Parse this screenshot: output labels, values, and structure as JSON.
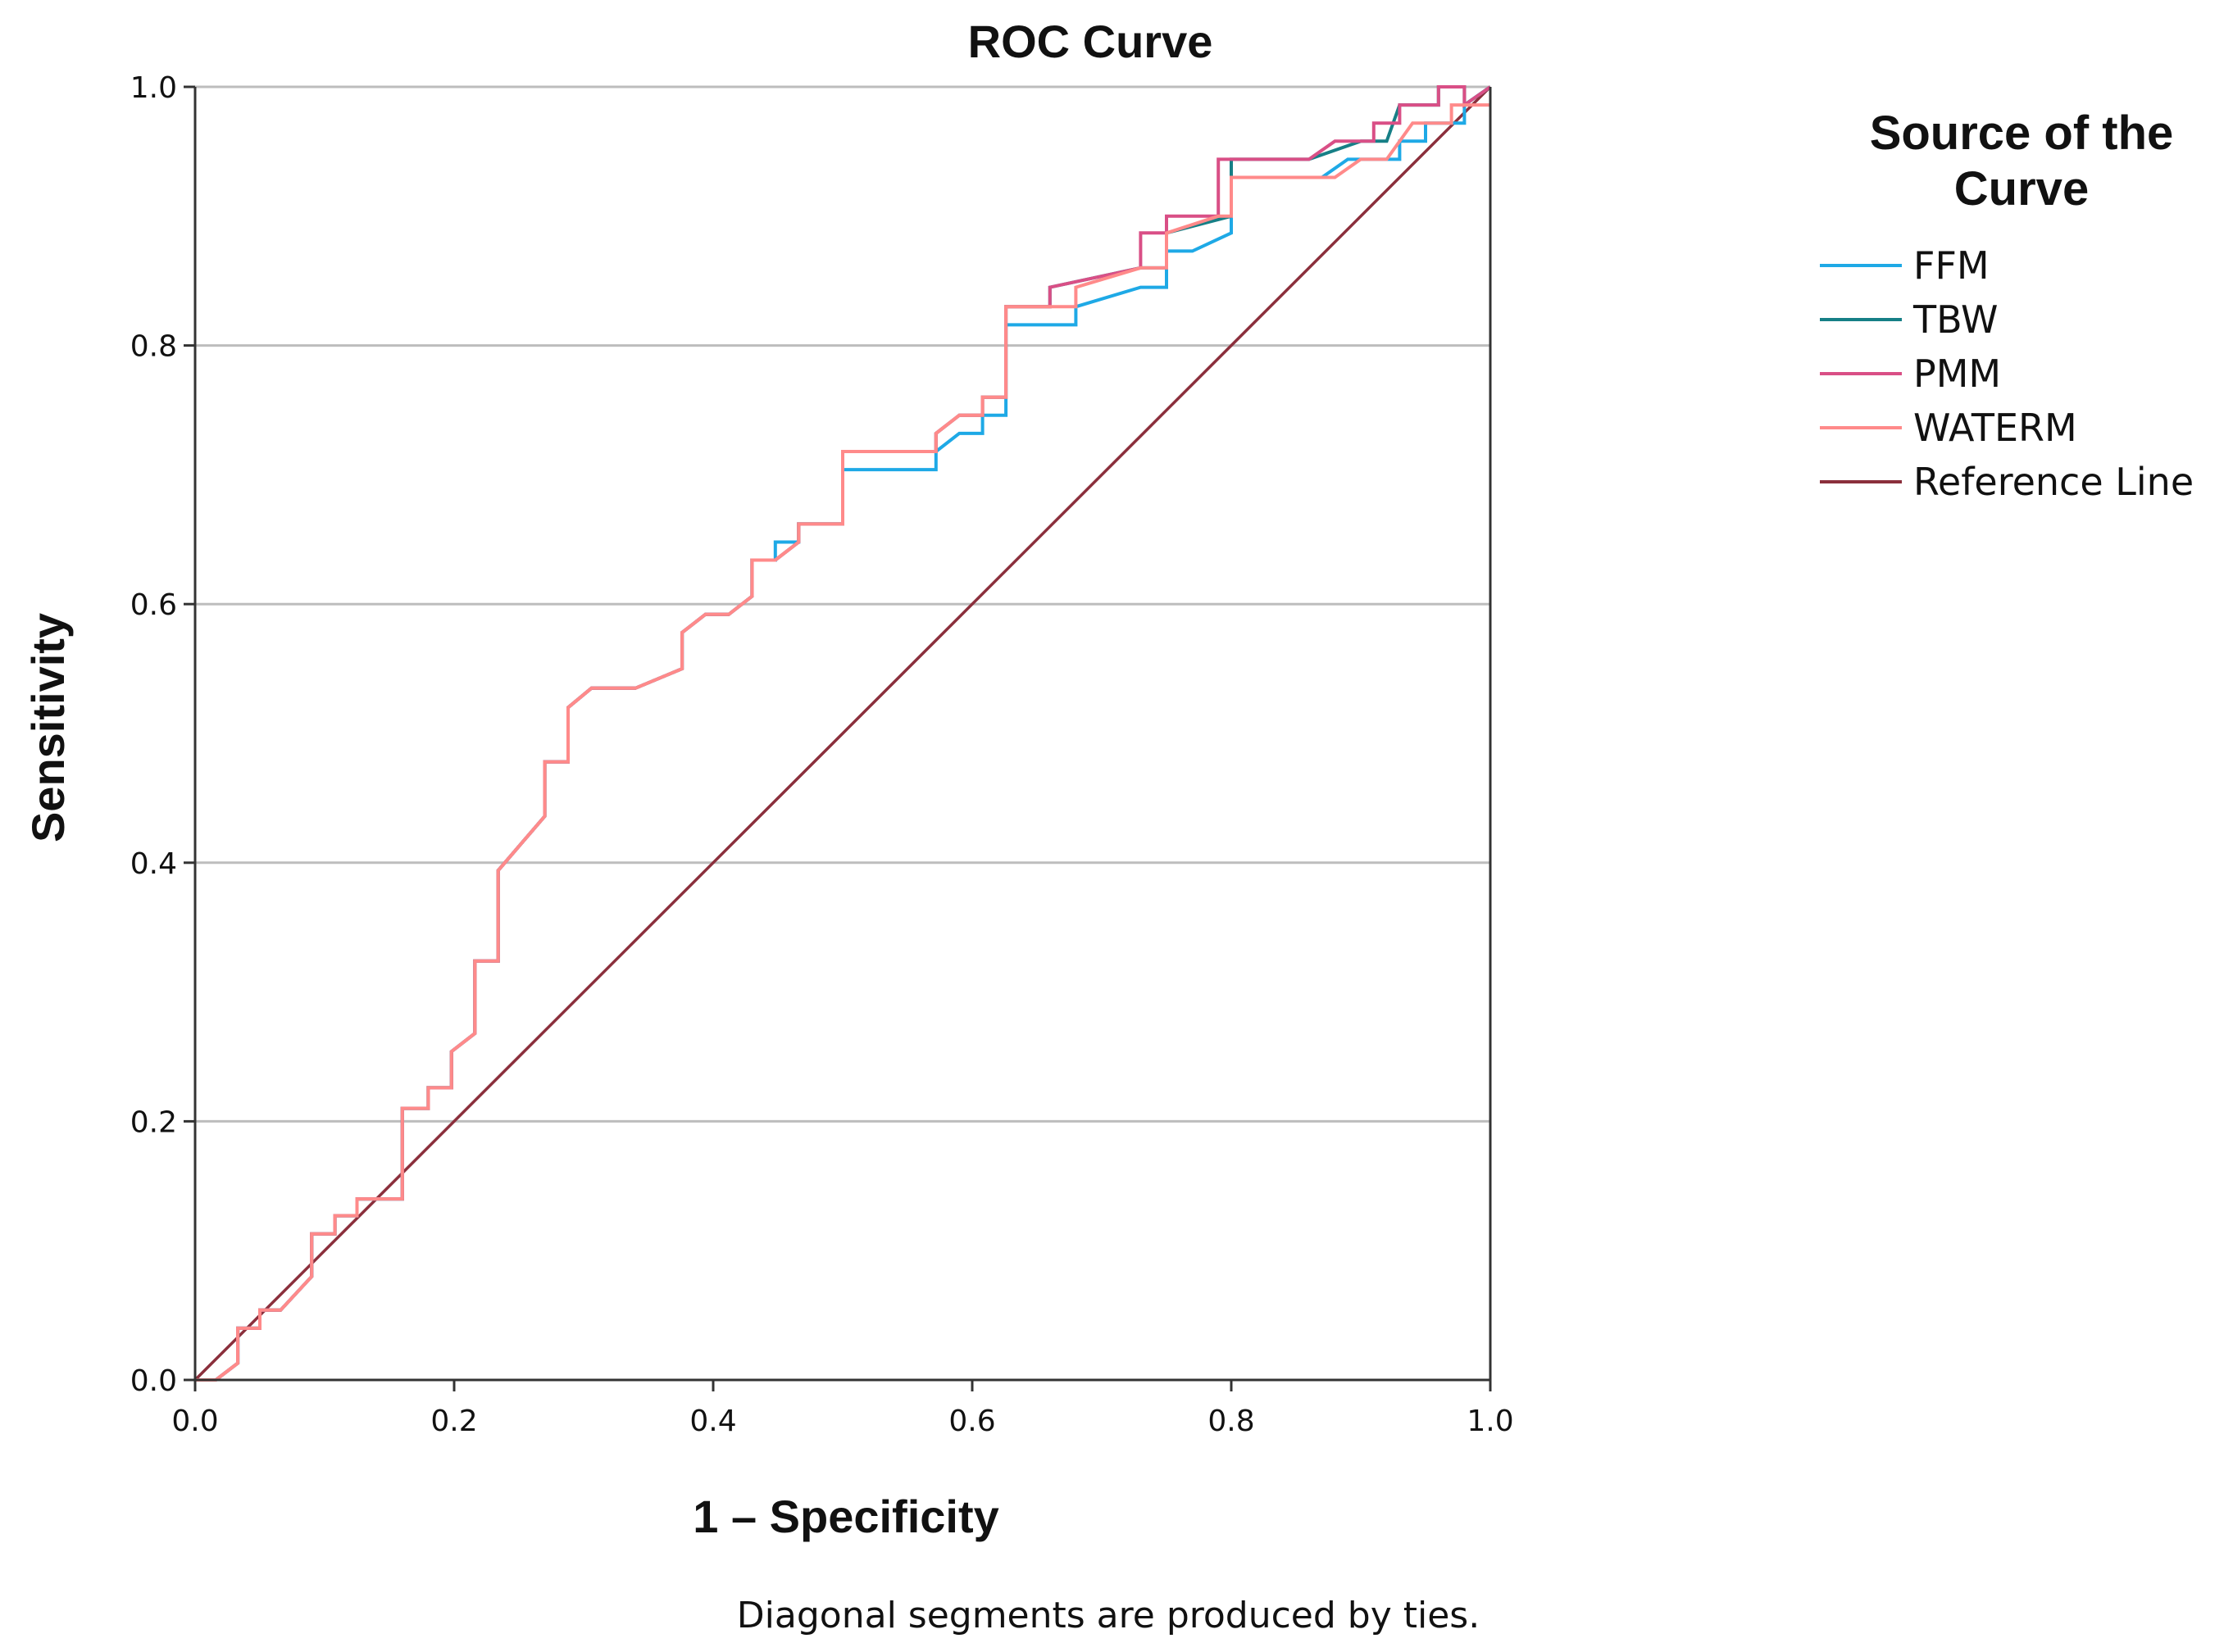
{
  "chart_data": {
    "type": "line",
    "title": "ROC Curve",
    "xlabel": "1 – Specificity",
    "ylabel": "Sensitivity",
    "xlim": [
      0,
      1
    ],
    "ylim": [
      0,
      1
    ],
    "xticks": [
      "0.0",
      "0.2",
      "0.4",
      "0.6",
      "0.8",
      "1.0"
    ],
    "yticks": [
      "0.0",
      "0.2",
      "0.4",
      "0.6",
      "0.8",
      "1.0"
    ],
    "grid": "horizontal",
    "legend": {
      "title_line1": "Source of the",
      "title_line2": "Curve",
      "placement": "right"
    },
    "footnote": "Diagonal segments are produced by ties.",
    "series": [
      {
        "name": "FFM",
        "color": "#1ea9e6",
        "x": [
          0,
          0.016,
          0.033,
          0.033,
          0.05,
          0.05,
          0.066,
          0.09,
          0.09,
          0.108,
          0.108,
          0.125,
          0.125,
          0.16,
          0.16,
          0.18,
          0.18,
          0.198,
          0.198,
          0.216,
          0.216,
          0.234,
          0.234,
          0.27,
          0.27,
          0.288,
          0.288,
          0.306,
          0.34,
          0.376,
          0.376,
          0.394,
          0.412,
          0.43,
          0.43,
          0.448,
          0.448,
          0.466,
          0.466,
          0.5,
          0.5,
          0.572,
          0.572,
          0.59,
          0.608,
          0.608,
          0.626,
          0.626,
          0.68,
          0.68,
          0.73,
          0.75,
          0.75,
          0.77,
          0.8,
          0.8,
          0.85,
          0.87,
          0.89,
          0.91,
          0.93,
          0.93,
          0.95,
          0.95,
          0.98,
          0.98,
          1.0
        ],
        "y": [
          0,
          0,
          0.013,
          0.04,
          0.04,
          0.054,
          0.054,
          0.08,
          0.113,
          0.113,
          0.127,
          0.127,
          0.14,
          0.14,
          0.21,
          0.21,
          0.226,
          0.226,
          0.254,
          0.268,
          0.324,
          0.324,
          0.394,
          0.436,
          0.478,
          0.478,
          0.52,
          0.535,
          0.535,
          0.55,
          0.578,
          0.592,
          0.592,
          0.606,
          0.634,
          0.634,
          0.648,
          0.648,
          0.662,
          0.662,
          0.704,
          0.704,
          0.718,
          0.732,
          0.732,
          0.746,
          0.746,
          0.816,
          0.816,
          0.83,
          0.845,
          0.845,
          0.873,
          0.873,
          0.887,
          0.93,
          0.93,
          0.93,
          0.944,
          0.944,
          0.944,
          0.958,
          0.958,
          0.972,
          0.972,
          0.986,
          1.0
        ]
      },
      {
        "name": "TBW",
        "color": "#167f86",
        "x": [
          0,
          0.016,
          0.033,
          0.033,
          0.05,
          0.05,
          0.066,
          0.09,
          0.09,
          0.108,
          0.108,
          0.125,
          0.125,
          0.16,
          0.16,
          0.18,
          0.18,
          0.198,
          0.198,
          0.216,
          0.216,
          0.234,
          0.234,
          0.27,
          0.27,
          0.288,
          0.288,
          0.306,
          0.34,
          0.376,
          0.376,
          0.394,
          0.412,
          0.43,
          0.43,
          0.448,
          0.466,
          0.466,
          0.5,
          0.5,
          0.572,
          0.572,
          0.59,
          0.608,
          0.608,
          0.626,
          0.626,
          0.66,
          0.66,
          0.73,
          0.75,
          0.75,
          0.8,
          0.8,
          0.86,
          0.9,
          0.92,
          0.93,
          0.96,
          0.96,
          0.98,
          0.98,
          1.0
        ],
        "y": [
          0,
          0,
          0.013,
          0.04,
          0.04,
          0.054,
          0.054,
          0.08,
          0.113,
          0.113,
          0.127,
          0.127,
          0.14,
          0.14,
          0.21,
          0.21,
          0.226,
          0.226,
          0.254,
          0.268,
          0.324,
          0.324,
          0.394,
          0.436,
          0.478,
          0.478,
          0.52,
          0.535,
          0.535,
          0.55,
          0.578,
          0.592,
          0.592,
          0.606,
          0.634,
          0.634,
          0.648,
          0.662,
          0.662,
          0.718,
          0.718,
          0.732,
          0.746,
          0.746,
          0.76,
          0.76,
          0.83,
          0.83,
          0.845,
          0.86,
          0.86,
          0.887,
          0.9,
          0.944,
          0.944,
          0.958,
          0.958,
          0.986,
          0.986,
          1.0,
          1.0,
          0.986,
          1.0
        ]
      },
      {
        "name": "PMM",
        "color": "#d94f86",
        "x": [
          0,
          0.016,
          0.033,
          0.033,
          0.05,
          0.05,
          0.066,
          0.09,
          0.09,
          0.108,
          0.108,
          0.125,
          0.125,
          0.16,
          0.16,
          0.18,
          0.18,
          0.198,
          0.198,
          0.216,
          0.216,
          0.234,
          0.234,
          0.27,
          0.27,
          0.288,
          0.288,
          0.306,
          0.34,
          0.376,
          0.376,
          0.394,
          0.412,
          0.43,
          0.43,
          0.448,
          0.466,
          0.466,
          0.5,
          0.5,
          0.572,
          0.572,
          0.59,
          0.608,
          0.608,
          0.626,
          0.626,
          0.66,
          0.66,
          0.73,
          0.73,
          0.75,
          0.75,
          0.77,
          0.77,
          0.79,
          0.79,
          0.86,
          0.88,
          0.91,
          0.91,
          0.93,
          0.93,
          0.96,
          0.96,
          0.98,
          0.98,
          1.0
        ],
        "y": [
          0,
          0,
          0.013,
          0.04,
          0.04,
          0.054,
          0.054,
          0.08,
          0.113,
          0.113,
          0.127,
          0.127,
          0.14,
          0.14,
          0.21,
          0.21,
          0.226,
          0.226,
          0.254,
          0.268,
          0.324,
          0.324,
          0.394,
          0.436,
          0.478,
          0.478,
          0.52,
          0.535,
          0.535,
          0.55,
          0.578,
          0.592,
          0.592,
          0.606,
          0.634,
          0.634,
          0.648,
          0.662,
          0.662,
          0.718,
          0.718,
          0.732,
          0.746,
          0.746,
          0.76,
          0.76,
          0.83,
          0.83,
          0.845,
          0.86,
          0.887,
          0.887,
          0.9,
          0.9,
          0.9,
          0.9,
          0.944,
          0.944,
          0.958,
          0.958,
          0.972,
          0.972,
          0.986,
          0.986,
          1.0,
          1.0,
          0.986,
          1.0
        ]
      },
      {
        "name": "WATERM",
        "color": "#ff8a8a",
        "x": [
          0,
          0.016,
          0.033,
          0.033,
          0.05,
          0.05,
          0.066,
          0.09,
          0.09,
          0.108,
          0.108,
          0.125,
          0.125,
          0.16,
          0.16,
          0.18,
          0.18,
          0.198,
          0.198,
          0.216,
          0.216,
          0.234,
          0.234,
          0.27,
          0.27,
          0.288,
          0.288,
          0.306,
          0.34,
          0.376,
          0.376,
          0.394,
          0.412,
          0.43,
          0.43,
          0.448,
          0.466,
          0.466,
          0.5,
          0.5,
          0.572,
          0.572,
          0.59,
          0.608,
          0.608,
          0.626,
          0.626,
          0.68,
          0.68,
          0.73,
          0.75,
          0.75,
          0.79,
          0.8,
          0.8,
          0.88,
          0.9,
          0.92,
          0.94,
          0.97,
          0.97,
          1.0
        ],
        "y": [
          0,
          0,
          0.013,
          0.04,
          0.04,
          0.054,
          0.054,
          0.08,
          0.113,
          0.113,
          0.127,
          0.127,
          0.14,
          0.14,
          0.21,
          0.21,
          0.226,
          0.226,
          0.254,
          0.268,
          0.324,
          0.324,
          0.394,
          0.436,
          0.478,
          0.478,
          0.52,
          0.535,
          0.535,
          0.55,
          0.578,
          0.592,
          0.592,
          0.606,
          0.634,
          0.634,
          0.648,
          0.662,
          0.662,
          0.718,
          0.718,
          0.732,
          0.746,
          0.746,
          0.76,
          0.76,
          0.83,
          0.83,
          0.845,
          0.86,
          0.86,
          0.887,
          0.9,
          0.9,
          0.93,
          0.93,
          0.944,
          0.944,
          0.972,
          0.972,
          0.986,
          0.986
        ]
      },
      {
        "name": "Reference Line",
        "color": "#8b2f3c",
        "x": [
          0,
          1
        ],
        "y": [
          0,
          1
        ]
      }
    ]
  }
}
